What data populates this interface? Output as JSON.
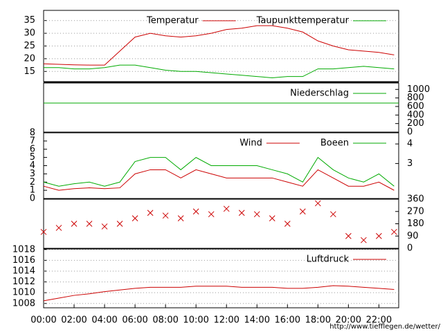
{
  "chart_data": [
    {
      "type": "line",
      "x": [
        0,
        1,
        2,
        3,
        4,
        5,
        6,
        7,
        8,
        9,
        10,
        11,
        12,
        13,
        14,
        15,
        16,
        17,
        18,
        19,
        20,
        21,
        22,
        23
      ],
      "series": [
        {
          "name": "Temperatur",
          "color": "#cc0000",
          "values": [
            18,
            17.8,
            17.6,
            17.5,
            17.5,
            23,
            28.5,
            30,
            29,
            28.5,
            29,
            30,
            31.5,
            32,
            33,
            33,
            32,
            30.5,
            27,
            25,
            23.5,
            23,
            22.5,
            21.5
          ]
        },
        {
          "name": "Taupunkttemperatur",
          "color": "#00aa00",
          "values": [
            16.5,
            16.5,
            16,
            16,
            16.5,
            17.5,
            17.5,
            16.5,
            15.5,
            15,
            15,
            14.5,
            14,
            13.5,
            13,
            12.5,
            13,
            13,
            16,
            16,
            16.5,
            17,
            16.5,
            16
          ]
        }
      ],
      "xlim": [
        0,
        23.3
      ],
      "ylim": [
        11,
        39
      ],
      "yticks": [
        15,
        20,
        25,
        30,
        35
      ],
      "grid": true
    },
    {
      "type": "line",
      "x": [
        0,
        23.3
      ],
      "series": [
        {
          "name": "Niederschlag",
          "color": "#00aa00",
          "axis": "y2",
          "values": [
            680,
            680
          ]
        }
      ],
      "xlim": [
        0,
        23.3
      ],
      "y2lim": [
        0,
        1150
      ],
      "y2ticks": [
        0,
        200,
        400,
        600,
        800,
        1000
      ]
    },
    {
      "type": "line",
      "x": [
        0,
        1,
        2,
        3,
        4,
        5,
        6,
        7,
        8,
        9,
        10,
        11,
        12,
        13,
        14,
        15,
        16,
        17,
        18,
        19,
        20,
        21,
        22,
        23
      ],
      "series": [
        {
          "name": "Wind",
          "color": "#cc0000",
          "values": [
            1.5,
            1,
            1.2,
            1.3,
            1.2,
            1.3,
            3,
            3.5,
            3.5,
            2.5,
            3.5,
            3,
            2.5,
            2.5,
            2.5,
            2.5,
            2,
            1.5,
            3.5,
            2.5,
            1.5,
            1.5,
            2,
            1
          ]
        },
        {
          "name": "Boeen",
          "color": "#00aa00",
          "values": [
            2,
            1.5,
            1.8,
            2,
            1.5,
            2,
            4.5,
            5,
            5,
            3.5,
            5,
            4,
            4,
            4,
            4,
            3.5,
            3,
            2,
            5,
            3.5,
            2.5,
            2,
            3,
            1.5
          ]
        }
      ],
      "xlim": [
        0,
        23.3
      ],
      "ylim": [
        0,
        8
      ],
      "yticks": [
        0,
        1,
        2,
        3,
        4,
        5,
        6,
        7,
        8
      ],
      "y2lim": [
        1.21,
        4.57
      ],
      "y2ticks": [
        3,
        4
      ]
    },
    {
      "type": "scatter",
      "x": [
        0,
        1,
        2,
        3,
        4,
        5,
        6,
        7,
        8,
        9,
        10,
        11,
        12,
        13,
        14,
        15,
        16,
        17,
        18,
        19,
        20,
        21,
        22,
        23
      ],
      "series": [
        {
          "color": "#cc0000",
          "axis": "y2",
          "values": [
            120,
            150,
            180,
            180,
            160,
            180,
            220,
            260,
            240,
            220,
            270,
            250,
            290,
            260,
            250,
            220,
            180,
            270,
            330,
            250,
            90,
            60,
            90,
            120
          ]
        }
      ],
      "xlim": [
        0,
        23.3
      ],
      "y2lim": [
        0,
        360
      ],
      "y2ticks": [
        0,
        90,
        180,
        270,
        360
      ]
    },
    {
      "type": "line",
      "x": [
        0,
        1,
        2,
        3,
        4,
        5,
        6,
        7,
        8,
        9,
        10,
        11,
        12,
        13,
        14,
        15,
        16,
        17,
        18,
        19,
        20,
        21,
        22,
        23
      ],
      "series": [
        {
          "name": "Luftdruck",
          "color": "#cc0000",
          "values": [
            1008.5,
            1009,
            1009.5,
            1009.8,
            1010.2,
            1010.5,
            1010.8,
            1011,
            1011,
            1011,
            1011.2,
            1011.2,
            1011.2,
            1011,
            1011,
            1011,
            1010.8,
            1010.8,
            1011,
            1011.3,
            1011.2,
            1011,
            1010.8,
            1010.6
          ]
        }
      ],
      "xlim": [
        0,
        23.3
      ],
      "ylim": [
        1007.2,
        1018.1
      ],
      "yticks": [
        1008,
        1010,
        1012,
        1014,
        1016,
        1018
      ],
      "grid": true,
      "xticks": [
        {
          "value": 0,
          "label": "00:00"
        },
        {
          "value": 2,
          "label": "02:00"
        },
        {
          "value": 4,
          "label": "04:00"
        },
        {
          "value": 6,
          "label": "06:00"
        },
        {
          "value": 8,
          "label": "08:00"
        },
        {
          "value": 10,
          "label": "10:00"
        },
        {
          "value": 12,
          "label": "12:00"
        },
        {
          "value": 14,
          "label": "14:00"
        },
        {
          "value": 16,
          "label": "16:00"
        },
        {
          "value": 18,
          "label": "18:00"
        },
        {
          "value": 20,
          "label": "20:00"
        },
        {
          "value": 22,
          "label": "22:00"
        }
      ],
      "source": "http://www.tiefflegen.de/wetter/"
    }
  ]
}
